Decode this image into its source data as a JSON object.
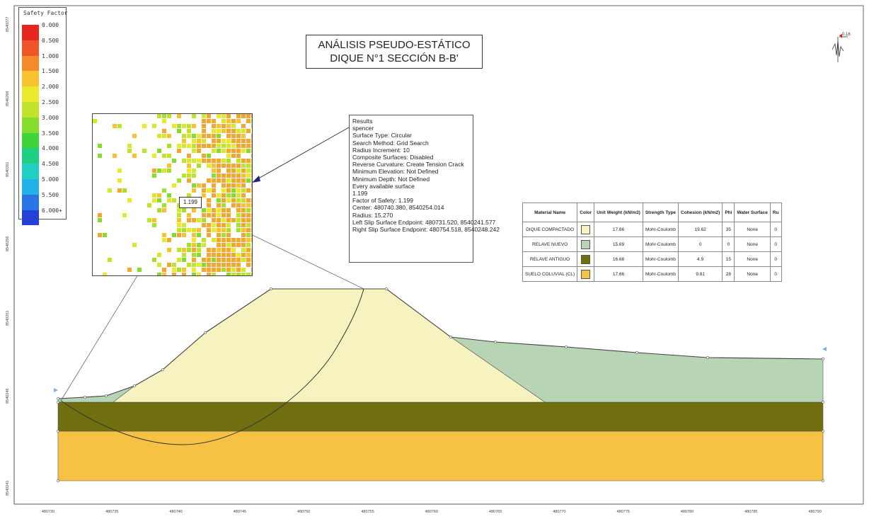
{
  "legend": {
    "title": "Safety Factor",
    "labels": [
      "0.000",
      "0.500",
      "1.000",
      "1.500",
      "2.000",
      "2.500",
      "3.000",
      "3.500",
      "4.000",
      "4.500",
      "5.000",
      "5.500",
      "6.000+"
    ],
    "colors": [
      "#e8261f",
      "#f0552a",
      "#f58a2c",
      "#f9c22e",
      "#eaea2c",
      "#bfe42a",
      "#86dc2c",
      "#3ed43a",
      "#1fcf82",
      "#1fcfc4",
      "#23b2e8",
      "#2a74e6",
      "#2340d8"
    ]
  },
  "title": {
    "line1": "ANÁLISIS PSEUDO-ESTÁTICO",
    "line2": "DIQUE N°1 SECCIÓN B-B'"
  },
  "results": {
    "lines": [
      "Results",
      "spencer",
      "Surface Type: Circular",
      "Search Method: Grid Search",
      "Radius Increment: 10",
      "Composite Surfaces: Disabled",
      "Reverse Curvature: Create Tension Crack",
      "Minimum Elevation: Not Defined",
      "Minimum Depth: Not Defined",
      "Every available surface",
      "1.199",
      "Factor of Safety: 1.199",
      "Center: 480740.380, 8540254.014",
      "Radius: 15.270",
      "Left Slip Surface Endpoint: 480731.520, 8540241.577",
      "Right Slip Surface Endpoint: 480754.518, 8540248.242"
    ]
  },
  "inset": {
    "fs_label": "1.199"
  },
  "materials": {
    "headers": [
      "Material Name",
      "Color",
      "Unit Weight (kN/m3)",
      "Strength Type",
      "Cohesion (kN/m2)",
      "Phi",
      "Water Surface",
      "Ru"
    ],
    "rows": [
      {
        "name": "DIQUE COMPACTADO",
        "color": "#f7f3c0",
        "unit_weight": "17.66",
        "strength": "Mohr-Coulomb",
        "cohesion": "19.62",
        "phi": "35",
        "water": "None",
        "ru": "0"
      },
      {
        "name": "RELAVE NUEVO",
        "color": "#b7d5b5",
        "unit_weight": "15.69",
        "strength": "Mohr-Coulomb",
        "cohesion": "0",
        "phi": "0",
        "water": "None",
        "ru": "0"
      },
      {
        "name": "RELAVE ANTIGUO",
        "color": "#6f6f10",
        "unit_weight": "16.68",
        "strength": "Mohr-Coulomb",
        "cohesion": "4.9",
        "phi": "15",
        "water": "None",
        "ru": "0"
      },
      {
        "name": "SUELO COLUVIAL (CL)",
        "color": "#f6c244",
        "unit_weight": "17.66",
        "strength": "Mohr-Coulomb",
        "cohesion": "9.81",
        "phi": "28",
        "water": "None",
        "ru": "0"
      }
    ]
  },
  "axes": {
    "x_ticks": [
      "480730",
      "480735",
      "480740",
      "480745",
      "480750",
      "480755",
      "480760",
      "480765",
      "480770",
      "480775",
      "480780",
      "480785",
      "480790"
    ],
    "y_ticks": [
      "8540277",
      "8540266",
      "8540261",
      "8540256",
      "8540251",
      "8540246",
      "8540241"
    ]
  },
  "marker": {
    "label": "0.16"
  }
}
